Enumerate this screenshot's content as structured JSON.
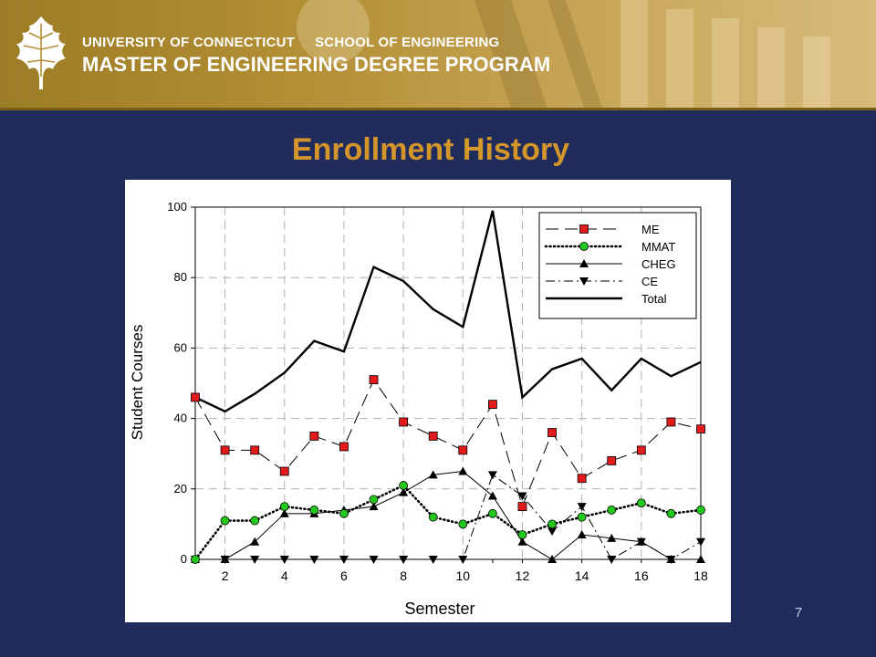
{
  "header": {
    "university": "UNIVERSITY OF CONNECTICUT",
    "school": "SCHOOL OF ENGINEERING",
    "program": "MASTER OF ENGINEERING DEGREE PROGRAM",
    "logo": "oak-leaf-icon"
  },
  "slide": {
    "title": "Enrollment History",
    "page_number": "7"
  },
  "colors": {
    "background": "#1f2c5c",
    "title": "#d4962b",
    "banner": "#b38f35",
    "me_marker": "#e31a1c",
    "mmat_marker": "#22c81c"
  },
  "chart_data": {
    "type": "line",
    "xlabel": "Semester",
    "ylabel": "Student Courses",
    "xlim": [
      1,
      18
    ],
    "ylim": [
      0,
      100
    ],
    "x_ticks": [
      2,
      4,
      6,
      8,
      10,
      12,
      14,
      16,
      18
    ],
    "y_ticks": [
      0,
      20,
      40,
      60,
      80,
      100
    ],
    "grid": true,
    "legend_position": "top-right",
    "x": [
      1,
      2,
      3,
      4,
      5,
      6,
      7,
      8,
      9,
      10,
      11,
      12,
      13,
      14,
      15,
      16,
      17,
      18
    ],
    "series": [
      {
        "name": "ME",
        "marker": "square",
        "line": "dashed",
        "color": "#e31a1c",
        "values": [
          46,
          31,
          31,
          25,
          35,
          32,
          51,
          39,
          35,
          31,
          44,
          15,
          36,
          23,
          28,
          31,
          39,
          37
        ]
      },
      {
        "name": "MMAT",
        "marker": "circle",
        "line": "dotted",
        "color": "#22c81c",
        "values": [
          0,
          11,
          11,
          15,
          14,
          13,
          17,
          21,
          12,
          10,
          13,
          7,
          10,
          12,
          14,
          16,
          13,
          14
        ]
      },
      {
        "name": "CHEG",
        "marker": "triangle-up",
        "line": "solid",
        "color": "#000000",
        "values": [
          0,
          0,
          5,
          13,
          13,
          14,
          15,
          19,
          24,
          25,
          18,
          5,
          0,
          7,
          6,
          5,
          0,
          0
        ]
      },
      {
        "name": "CE",
        "marker": "triangle-down",
        "line": "dashdot",
        "color": "#000000",
        "values": [
          0,
          0,
          0,
          0,
          0,
          0,
          0,
          0,
          0,
          0,
          24,
          18,
          8,
          15,
          0,
          5,
          0,
          5
        ]
      },
      {
        "name": "Total",
        "marker": "none",
        "line": "thick",
        "color": "#000000",
        "values": [
          46,
          42,
          47,
          53,
          62,
          59,
          83,
          79,
          71,
          66,
          99,
          46,
          54,
          57,
          48,
          57,
          52,
          56
        ]
      }
    ]
  }
}
